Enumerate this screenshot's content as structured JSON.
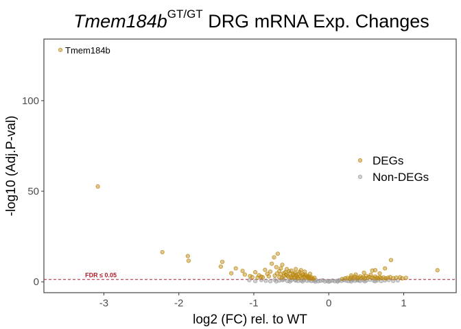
{
  "chart_data": {
    "type": "scatter",
    "title": {
      "gene": "Tmem184b",
      "superscript": "GT/GT",
      "rest": " DRG mRNA Exp. Changes"
    },
    "xlabel": "log2 (FC) rel. to WT",
    "ylabel": "-log10 (Adj.P-val)",
    "xlim": [
      -3.8,
      1.7
    ],
    "ylim": [
      -6,
      134
    ],
    "x_ticks": [
      -3,
      -2,
      -1,
      0,
      1
    ],
    "x_tick_labels": [
      "-3",
      "-2",
      "-1",
      "0",
      "1"
    ],
    "y_ticks": [
      0,
      50,
      100
    ],
    "y_tick_labels": [
      "0",
      "50",
      "100"
    ],
    "grid": false,
    "legend_position": "right",
    "threshold": {
      "value": 1.3,
      "label": "FDR ≤ 0.05",
      "color": "#b2182b"
    },
    "colors": {
      "DEGs": "#b8860b",
      "Non-DEGs": "#9a9a9a"
    },
    "series": [
      {
        "name": "DEGs",
        "points": [
          [
            -3.58,
            128
          ],
          [
            -3.08,
            52.6
          ],
          [
            -2.22,
            16.4
          ],
          [
            -1.88,
            14.2
          ],
          [
            -1.87,
            11.6
          ],
          [
            -1.42,
            11.0
          ],
          [
            -1.44,
            8.4
          ],
          [
            -1.24,
            7.4
          ],
          [
            -1.15,
            6.0
          ],
          [
            -1.3,
            4.7
          ],
          [
            -1.12,
            4.0
          ],
          [
            -1.05,
            3.2
          ],
          [
            -0.98,
            5.3
          ],
          [
            -0.93,
            3.6
          ],
          [
            -0.9,
            2.8
          ],
          [
            -0.85,
            6.6
          ],
          [
            -0.82,
            4.4
          ],
          [
            -0.8,
            3.0
          ],
          [
            -0.76,
            10.0
          ],
          [
            -0.73,
            13.5
          ],
          [
            -0.7,
            8.1
          ],
          [
            -0.68,
            15.5
          ],
          [
            -0.66,
            6.0
          ],
          [
            -0.64,
            4.2
          ],
          [
            -0.62,
            9.4
          ],
          [
            -0.6,
            3.1
          ],
          [
            -0.58,
            5.3
          ],
          [
            -0.56,
            7.0
          ],
          [
            -0.54,
            2.7
          ],
          [
            -0.52,
            4.7
          ],
          [
            -0.5,
            6.2
          ],
          [
            -0.48,
            3.6
          ],
          [
            -0.46,
            2.3
          ],
          [
            -0.45,
            5.0
          ],
          [
            -0.44,
            3.9
          ],
          [
            -0.42,
            2.7
          ],
          [
            -0.4,
            4.4
          ],
          [
            -0.38,
            3.1
          ],
          [
            -0.36,
            2.1
          ],
          [
            -0.35,
            3.6
          ],
          [
            -0.33,
            2.8
          ],
          [
            -0.32,
            5.6
          ],
          [
            -0.3,
            2.4
          ],
          [
            -0.29,
            3.3
          ],
          [
            -0.27,
            2.0
          ],
          [
            -0.26,
            2.9
          ],
          [
            -0.24,
            1.9
          ],
          [
            -0.23,
            2.5
          ],
          [
            -0.21,
            1.7
          ],
          [
            -0.19,
            2.2
          ],
          [
            -0.72,
            3.4
          ],
          [
            -0.66,
            2.6
          ],
          [
            -0.6,
            4.8
          ],
          [
            -0.55,
            3.3
          ],
          [
            -0.5,
            2.5
          ],
          [
            -0.43,
            3.1
          ],
          [
            -0.39,
            5.4
          ],
          [
            -0.34,
            4.2
          ],
          [
            -0.28,
            2.6
          ],
          [
            -0.62,
            2.2
          ],
          [
            -0.57,
            3.8
          ],
          [
            -0.47,
            4.3
          ],
          [
            -0.41,
            2.0
          ],
          [
            -0.37,
            6.4
          ],
          [
            -0.31,
            3.8
          ],
          [
            -0.53,
            5.8
          ],
          [
            -0.49,
            2.2
          ],
          [
            -0.44,
            7.0
          ],
          [
            -0.69,
            4.6
          ],
          [
            -0.64,
            7.4
          ],
          [
            -0.78,
            5.6
          ],
          [
            -0.88,
            2.5
          ],
          [
            -0.95,
            2.3
          ],
          [
            -1.02,
            2.6
          ],
          [
            -0.25,
            4.4
          ],
          [
            0.18,
            1.6
          ],
          [
            0.22,
            1.9
          ],
          [
            0.25,
            2.2
          ],
          [
            0.28,
            1.7
          ],
          [
            0.3,
            2.4
          ],
          [
            0.33,
            2.0
          ],
          [
            0.35,
            2.8
          ],
          [
            0.38,
            1.8
          ],
          [
            0.4,
            2.3
          ],
          [
            0.42,
            3.0
          ],
          [
            0.44,
            2.1
          ],
          [
            0.46,
            2.6
          ],
          [
            0.48,
            1.9
          ],
          [
            0.5,
            3.3
          ],
          [
            0.52,
            2.2
          ],
          [
            0.54,
            2.7
          ],
          [
            0.56,
            3.9
          ],
          [
            0.58,
            2.4
          ],
          [
            0.6,
            2.0
          ],
          [
            0.62,
            2.9
          ],
          [
            0.64,
            2.2
          ],
          [
            0.66,
            1.9
          ],
          [
            0.68,
            2.6
          ],
          [
            0.7,
            2.0
          ],
          [
            0.73,
            2.4
          ],
          [
            0.76,
            1.9
          ],
          [
            0.79,
            2.2
          ],
          [
            0.82,
            2.6
          ],
          [
            0.86,
            2.0
          ],
          [
            0.9,
            2.3
          ],
          [
            0.95,
            2.5
          ],
          [
            0.98,
            1.9
          ],
          [
            1.03,
            2.2
          ],
          [
            0.58,
            6.2
          ],
          [
            0.62,
            6.4
          ],
          [
            0.75,
            7.4
          ],
          [
            0.83,
            12.0
          ],
          [
            1.45,
            6.4
          ],
          [
            0.47,
            5.0
          ],
          [
            0.36,
            4.0
          ],
          [
            0.3,
            3.5
          ],
          [
            0.68,
            4.6
          ]
        ]
      },
      {
        "name": "Non-DEGs",
        "points": [
          [
            -1.06,
            0.9
          ],
          [
            -0.98,
            0.4
          ],
          [
            -0.9,
            1.0
          ],
          [
            -0.84,
            0.6
          ],
          [
            -0.78,
            0.3
          ],
          [
            -0.72,
            1.1
          ],
          [
            -0.66,
            0.7
          ],
          [
            -0.6,
            1.2
          ],
          [
            -0.55,
            0.4
          ],
          [
            -0.5,
            0.9
          ],
          [
            -0.45,
            1.1
          ],
          [
            -0.41,
            0.5
          ],
          [
            -0.37,
            0.8
          ],
          [
            -0.33,
            1.0
          ],
          [
            -0.29,
            0.6
          ],
          [
            -0.26,
            0.9
          ],
          [
            -0.23,
            0.4
          ],
          [
            -0.2,
            0.7
          ],
          [
            -0.17,
            0.9
          ],
          [
            -0.14,
            0.3
          ],
          [
            -0.11,
            0.6
          ],
          [
            -0.08,
            0.8
          ],
          [
            -0.05,
            0.2
          ],
          [
            -0.02,
            0.5
          ],
          [
            0.0,
            0.1
          ],
          [
            0.02,
            0.4
          ],
          [
            0.05,
            0.7
          ],
          [
            0.08,
            0.3
          ],
          [
            0.11,
            0.6
          ],
          [
            0.14,
            0.9
          ],
          [
            0.17,
            0.5
          ],
          [
            0.2,
            1.0
          ],
          [
            0.23,
            0.7
          ],
          [
            0.26,
            0.4
          ],
          [
            0.29,
            0.9
          ],
          [
            0.32,
            1.1
          ],
          [
            0.35,
            0.6
          ],
          [
            0.38,
            0.9
          ],
          [
            0.42,
            0.5
          ],
          [
            0.46,
            1.0
          ],
          [
            0.5,
            0.7
          ],
          [
            0.55,
            1.1
          ],
          [
            0.6,
            0.6
          ],
          [
            0.65,
            0.9
          ],
          [
            0.7,
            0.4
          ],
          [
            0.75,
            0.8
          ],
          [
            0.8,
            1.0
          ],
          [
            0.86,
            0.5
          ],
          [
            0.92,
            0.8
          ],
          [
            -0.7,
            0.2
          ],
          [
            -0.52,
            0.2
          ],
          [
            -0.35,
            0.2
          ],
          [
            -0.18,
            0.15
          ],
          [
            0.12,
            0.15
          ],
          [
            0.3,
            0.2
          ],
          [
            0.48,
            0.25
          ],
          [
            0.62,
            0.3
          ],
          [
            -0.62,
            0.95
          ],
          [
            -0.44,
            0.7
          ],
          [
            0.4,
            0.75
          ]
        ]
      }
    ],
    "annotations": [
      {
        "text": "Tmem184b",
        "x": -3.58,
        "y": 128
      }
    ]
  }
}
